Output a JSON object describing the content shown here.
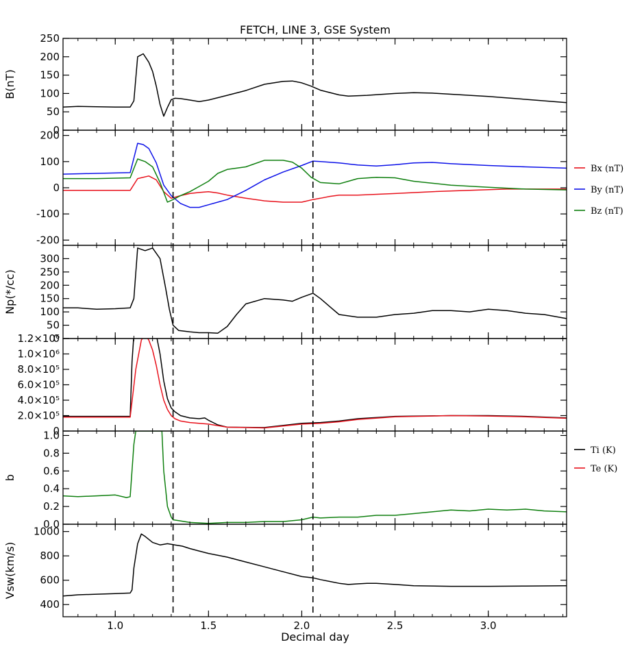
{
  "title": "FETCH, LINE 3, GSE System",
  "xlabel": "Decimal day",
  "x_ticks": [
    "1.0",
    "1.5",
    "2.0",
    "2.5",
    "3.0"
  ],
  "x_range": [
    0.72,
    3.42
  ],
  "markers": [
    1.31,
    2.06
  ],
  "chart_data": [
    {
      "type": "line",
      "ylabel": "B(nT)",
      "ylim": [
        0,
        250
      ],
      "y_ticks": [
        "0",
        "50",
        "100",
        "150",
        "200",
        "250"
      ],
      "series": [
        {
          "color": "#000000",
          "x": [
            0.72,
            0.8,
            0.9,
            1.0,
            1.08,
            1.1,
            1.12,
            1.15,
            1.18,
            1.2,
            1.22,
            1.24,
            1.26,
            1.28,
            1.3,
            1.32,
            1.35,
            1.4,
            1.45,
            1.5,
            1.6,
            1.7,
            1.8,
            1.9,
            1.95,
            2.0,
            2.05,
            2.1,
            2.2,
            2.25,
            2.35,
            2.5,
            2.6,
            2.7,
            2.8,
            3.0,
            3.2,
            3.42
          ],
          "y": [
            63,
            65,
            64,
            63,
            63,
            80,
            200,
            208,
            185,
            160,
            120,
            70,
            38,
            62,
            83,
            87,
            86,
            82,
            78,
            82,
            95,
            108,
            125,
            133,
            134,
            129,
            120,
            109,
            96,
            93,
            95,
            100,
            102,
            101,
            98,
            92,
            84,
            75
          ]
        }
      ]
    },
    {
      "type": "line",
      "ylim": [
        -220,
        220
      ],
      "y_ticks": [
        "-200",
        "-100",
        "0",
        "100",
        "200"
      ],
      "legend_position": "right",
      "series": [
        {
          "name": "Bx (nT)",
          "color": "#e8111b",
          "x": [
            0.72,
            0.9,
            1.08,
            1.12,
            1.18,
            1.22,
            1.26,
            1.3,
            1.35,
            1.4,
            1.45,
            1.5,
            1.55,
            1.6,
            1.7,
            1.8,
            1.9,
            2.0,
            2.06,
            2.1,
            2.15,
            2.2,
            2.3,
            2.5,
            2.7,
            2.9,
            3.1,
            3.3,
            3.42
          ],
          "y": [
            -10,
            -10,
            -10,
            35,
            45,
            30,
            -15,
            -40,
            -30,
            -22,
            -18,
            -15,
            -20,
            -28,
            -40,
            -50,
            -55,
            -55,
            -45,
            -40,
            -33,
            -28,
            -28,
            -22,
            -15,
            -10,
            -5,
            -5,
            -5
          ]
        },
        {
          "name": "By (nT)",
          "color": "#0b10e8",
          "x": [
            0.72,
            0.9,
            1.08,
            1.12,
            1.15,
            1.18,
            1.22,
            1.26,
            1.3,
            1.35,
            1.4,
            1.45,
            1.5,
            1.55,
            1.6,
            1.7,
            1.8,
            1.9,
            2.0,
            2.06,
            2.1,
            2.2,
            2.3,
            2.4,
            2.5,
            2.6,
            2.7,
            2.8,
            3.0,
            3.2,
            3.42
          ],
          "y": [
            52,
            55,
            58,
            170,
            165,
            150,
            95,
            10,
            -30,
            -60,
            -75,
            -75,
            -65,
            -55,
            -45,
            -10,
            30,
            60,
            85,
            102,
            100,
            95,
            87,
            83,
            88,
            95,
            97,
            92,
            85,
            80,
            75
          ]
        },
        {
          "name": "Bz (nT)",
          "color": "#0e7f0e",
          "x": [
            0.72,
            0.9,
            1.08,
            1.12,
            1.16,
            1.2,
            1.24,
            1.28,
            1.31,
            1.35,
            1.4,
            1.45,
            1.5,
            1.55,
            1.6,
            1.7,
            1.8,
            1.9,
            1.95,
            2.0,
            2.05,
            2.1,
            2.2,
            2.25,
            2.3,
            2.4,
            2.5,
            2.6,
            2.8,
            3.0,
            3.2,
            3.42
          ],
          "y": [
            35,
            35,
            38,
            110,
            100,
            80,
            20,
            -55,
            -45,
            -30,
            -15,
            5,
            25,
            55,
            70,
            80,
            105,
            105,
            98,
            75,
            40,
            20,
            15,
            25,
            35,
            40,
            38,
            25,
            10,
            2,
            -5,
            -8
          ]
        }
      ]
    },
    {
      "type": "line",
      "ylabel": "Np(*/cc)",
      "ylim": [
        0,
        350
      ],
      "y_ticks": [
        "0",
        "50",
        "100",
        "150",
        "200",
        "250",
        "300"
      ],
      "series": [
        {
          "color": "#000000",
          "x": [
            0.72,
            0.8,
            0.9,
            1.0,
            1.08,
            1.1,
            1.12,
            1.16,
            1.2,
            1.24,
            1.27,
            1.29,
            1.31,
            1.34,
            1.4,
            1.45,
            1.5,
            1.55,
            1.6,
            1.65,
            1.7,
            1.8,
            1.9,
            1.95,
            2.0,
            2.06,
            2.1,
            2.15,
            2.2,
            2.3,
            2.4,
            2.5,
            2.6,
            2.7,
            2.8,
            2.9,
            3.0,
            3.1,
            3.2,
            3.3,
            3.42
          ],
          "y": [
            115,
            115,
            110,
            112,
            115,
            150,
            340,
            330,
            340,
            300,
            190,
            110,
            50,
            30,
            25,
            22,
            22,
            20,
            45,
            90,
            130,
            150,
            145,
            140,
            155,
            170,
            150,
            120,
            90,
            80,
            80,
            90,
            95,
            105,
            105,
            100,
            110,
            105,
            95,
            90,
            75
          ]
        }
      ]
    },
    {
      "type": "line",
      "ylim": [
        0,
        1200000
      ],
      "y_ticks": [
        "0",
        "2.0×10⁵",
        "4.0×10⁵",
        "6.0×10⁵",
        "8.0×10⁵",
        "1.0×10⁶",
        "1.2×10⁶"
      ],
      "legend_position": "right",
      "series": [
        {
          "name": "Ti (K)",
          "color": "#000000",
          "x": [
            0.72,
            0.9,
            1.08,
            1.09,
            1.1,
            1.12,
            1.15,
            1.18,
            1.2,
            1.22,
            1.24,
            1.26,
            1.28,
            1.3,
            1.32,
            1.35,
            1.4,
            1.45,
            1.48,
            1.5,
            1.55,
            1.6,
            1.8,
            2.0,
            2.1,
            2.2,
            2.3,
            2.5,
            2.8,
            3.0,
            3.2,
            3.42
          ],
          "y": [
            190000,
            190000,
            190000,
            900000,
            1250000,
            1250000,
            1250000,
            1250000,
            1250000,
            1250000,
            1000000,
            650000,
            420000,
            300000,
            250000,
            200000,
            170000,
            160000,
            170000,
            140000,
            80000,
            50000,
            45000,
            100000,
            110000,
            130000,
            160000,
            190000,
            200000,
            200000,
            190000,
            170000
          ]
        },
        {
          "name": "Te (K)",
          "color": "#e8111b",
          "x": [
            0.72,
            0.9,
            1.08,
            1.11,
            1.14,
            1.16,
            1.18,
            1.2,
            1.22,
            1.24,
            1.26,
            1.28,
            1.3,
            1.32,
            1.35,
            1.4,
            1.5,
            1.6,
            1.8,
            2.0,
            2.1,
            2.2,
            2.3,
            2.5,
            2.8,
            3.0,
            3.2,
            3.42
          ],
          "y": [
            180000,
            180000,
            180000,
            800000,
            1180000,
            1250000,
            1180000,
            1050000,
            850000,
            600000,
            400000,
            280000,
            200000,
            160000,
            130000,
            110000,
            90000,
            50000,
            40000,
            90000,
            100000,
            120000,
            150000,
            185000,
            200000,
            195000,
            185000,
            165000
          ]
        }
      ]
    },
    {
      "type": "line",
      "ylabel": "b",
      "ylim": [
        0,
        1.05
      ],
      "y_ticks": [
        "0.0",
        "0.2",
        "0.4",
        "0.6",
        "0.8",
        "1.0"
      ],
      "series": [
        {
          "color": "#0e7f0e",
          "x": [
            0.72,
            0.8,
            0.9,
            1.0,
            1.06,
            1.08,
            1.1,
            1.11,
            1.25,
            1.26,
            1.28,
            1.3,
            1.31,
            1.34,
            1.4,
            1.5,
            1.6,
            1.7,
            1.8,
            1.9,
            2.0,
            2.06,
            2.1,
            2.2,
            2.3,
            2.4,
            2.5,
            2.6,
            2.7,
            2.8,
            2.9,
            3.0,
            3.1,
            3.2,
            3.3,
            3.42
          ],
          "y": [
            0.32,
            0.31,
            0.32,
            0.33,
            0.3,
            0.31,
            0.9,
            1.05,
            1.05,
            0.6,
            0.2,
            0.08,
            0.05,
            0.04,
            0.02,
            0.01,
            0.02,
            0.02,
            0.03,
            0.03,
            0.05,
            0.08,
            0.07,
            0.08,
            0.08,
            0.1,
            0.1,
            0.12,
            0.14,
            0.16,
            0.15,
            0.17,
            0.16,
            0.17,
            0.15,
            0.14
          ]
        }
      ]
    },
    {
      "type": "line",
      "ylabel": "Vsw(km/s)",
      "ylim": [
        300,
        1060
      ],
      "y_ticks": [
        "400",
        "600",
        "800",
        "1000"
      ],
      "series": [
        {
          "color": "#000000",
          "x": [
            0.72,
            0.8,
            0.9,
            1.0,
            1.08,
            1.09,
            1.1,
            1.12,
            1.14,
            1.16,
            1.2,
            1.24,
            1.28,
            1.32,
            1.36,
            1.4,
            1.45,
            1.5,
            1.6,
            1.7,
            1.8,
            1.9,
            2.0,
            2.06,
            2.1,
            2.15,
            2.2,
            2.25,
            2.3,
            2.35,
            2.4,
            2.5,
            2.6,
            2.8,
            3.0,
            3.2,
            3.42
          ],
          "y": [
            470,
            480,
            485,
            490,
            495,
            520,
            700,
            900,
            980,
            960,
            910,
            890,
            900,
            890,
            880,
            860,
            840,
            820,
            790,
            750,
            710,
            670,
            630,
            620,
            605,
            590,
            575,
            565,
            570,
            575,
            575,
            565,
            555,
            550,
            550,
            552,
            555
          ]
        }
      ]
    }
  ]
}
